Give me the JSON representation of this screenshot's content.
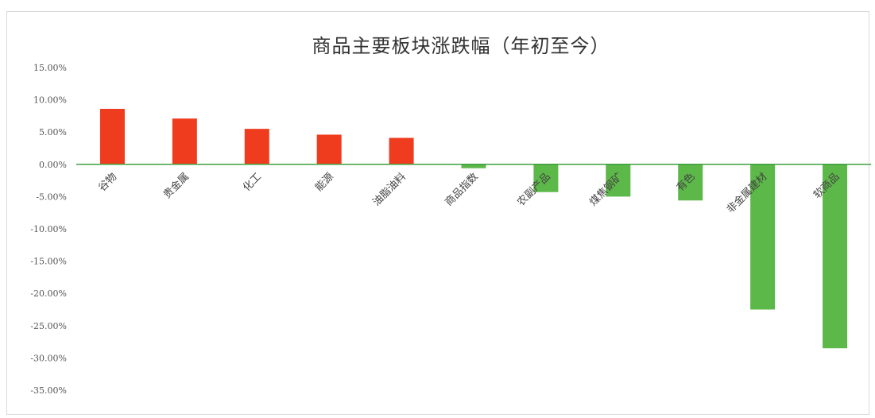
{
  "chart_data": {
    "type": "bar",
    "title": "商品主要板块涨跌幅（年初至今）",
    "xlabel": "",
    "ylabel": "",
    "categories": [
      "谷物",
      "贵金属",
      "化工",
      "能源",
      "油脂油料",
      "商品指数",
      "农副产品",
      "煤焦钢矿",
      "有色",
      "非金属建材",
      "软商品"
    ],
    "values": [
      8.6,
      7.1,
      5.5,
      4.6,
      4.1,
      -0.6,
      -4.3,
      -5.0,
      -5.6,
      -22.5,
      -28.5
    ],
    "value_unit": "%",
    "ylim": [
      -35,
      15
    ],
    "yticks": [
      15,
      10,
      5,
      0,
      -5,
      -10,
      -15,
      -20,
      -25,
      -30,
      -35
    ],
    "ytick_labels": [
      "15.00%",
      "10.00%",
      "5.00%",
      "0.00%",
      "-5.00%",
      "-10.00%",
      "-15.00%",
      "-20.00%",
      "-25.00%",
      "-30.00%",
      "-35.00%"
    ],
    "grid": false,
    "legend": "none",
    "colors": {
      "positive": "#f03c1e",
      "negative": "#5cb848",
      "zero_line": "#3e9f3e",
      "title": "#333333",
      "tick": "#555555"
    }
  }
}
